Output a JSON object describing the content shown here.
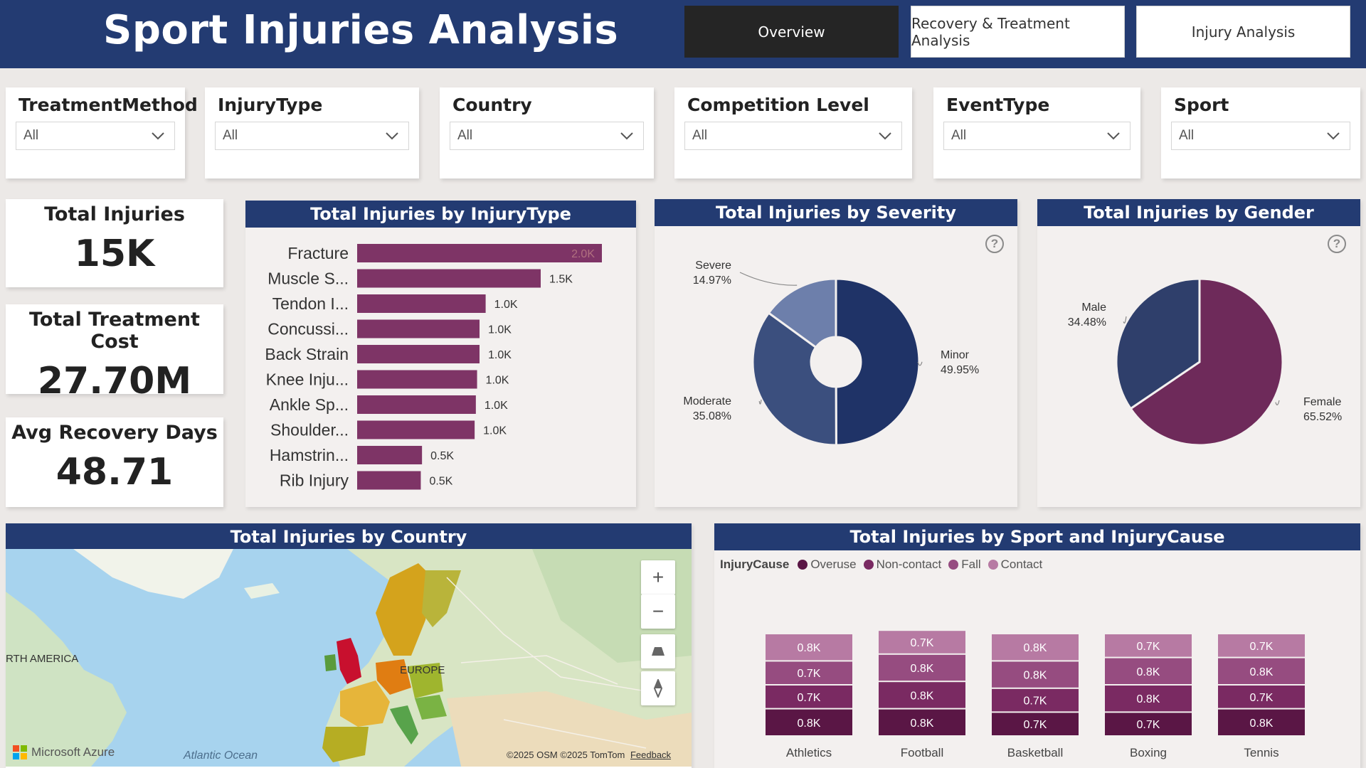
{
  "header": {
    "title": "Sport Injuries Analysis",
    "tabs": [
      {
        "label": "Overview"
      },
      {
        "label": "Recovery & Treatment Analysis"
      },
      {
        "label": "Injury Analysis"
      }
    ]
  },
  "slicers": [
    {
      "title": "TreatmentMethod",
      "value": "All"
    },
    {
      "title": "InjuryType",
      "value": "All"
    },
    {
      "title": "Country",
      "value": "All"
    },
    {
      "title": "Competition Level",
      "value": "All"
    },
    {
      "title": "EventType",
      "value": "All"
    },
    {
      "title": "Sport",
      "value": "All"
    }
  ],
  "kpis": [
    {
      "label": "Total Injuries",
      "value": "15K"
    },
    {
      "label": "Total Treatment Cost",
      "value": "27.70M"
    },
    {
      "label": "Avg Recovery Days",
      "value": "48.71"
    }
  ],
  "panels": {
    "injury_type": "Total Injuries by InjuryType",
    "severity": "Total Injuries by Severity",
    "gender": "Total Injuries by Gender",
    "country": "Total Injuries by Country",
    "sport_cause": "Total Injuries by Sport and InjuryCause"
  },
  "help_glyph": "?",
  "colors": {
    "header": "#233b72",
    "bar": "#7e3466",
    "severity": [
      "#1f3367",
      "#3b4f7e",
      "#6d7fab"
    ],
    "gender": [
      "#6e2a5a",
      "#2f3f6b"
    ],
    "causes": [
      "#5a1645",
      "#7a2a62",
      "#964c80",
      "#b77aa3"
    ]
  },
  "map": {
    "labels": {
      "north_america": "RTH AMERICA",
      "europe": "EUROPE",
      "ocean": "Atlantic Ocean"
    },
    "brand": "Microsoft Azure",
    "attribution": "©2025 OSM ©2025 TomTom",
    "feedback": "Feedback",
    "controls": {
      "zoom_in": "+",
      "zoom_out": "−"
    }
  },
  "chart_data": [
    {
      "type": "bar",
      "title": "Total Injuries by InjuryType",
      "categories": [
        "Fracture",
        "Muscle S...",
        "Tendon I...",
        "Concussi...",
        "Back Strain",
        "Knee Inju...",
        "Ankle Sp...",
        "Shoulder...",
        "Hamstrin...",
        "Rib Injury"
      ],
      "values": [
        2000,
        1500,
        1050,
        1000,
        1000,
        980,
        970,
        960,
        530,
        520
      ],
      "data_labels": [
        "2.0K",
        "1.5K",
        "1.0K",
        "1.0K",
        "1.0K",
        "1.0K",
        "1.0K",
        "1.0K",
        "0.5K",
        "0.5K"
      ],
      "orientation": "horizontal"
    },
    {
      "type": "pie",
      "title": "Total Injuries by Severity",
      "donut": true,
      "labels": [
        "Minor",
        "Moderate",
        "Severe"
      ],
      "values": [
        49.95,
        35.08,
        14.97
      ],
      "value_labels": [
        "49.95%",
        "35.08%",
        "14.97%"
      ]
    },
    {
      "type": "pie",
      "title": "Total Injuries by Gender",
      "labels": [
        "Female",
        "Male"
      ],
      "values": [
        65.52,
        34.48
      ],
      "value_labels": [
        "65.52%",
        "34.48%"
      ]
    },
    {
      "type": "bar",
      "stacked": true,
      "title": "Total Injuries by Sport and InjuryCause",
      "legend_title": "InjuryCause",
      "categories": [
        "Athletics",
        "Football",
        "Basketball",
        "Boxing",
        "Tennis"
      ],
      "series": [
        {
          "name": "Overuse",
          "values": [
            0.8,
            0.8,
            0.7,
            0.7,
            0.8
          ],
          "labels": [
            "0.8K",
            "0.8K",
            "0.7K",
            "0.7K",
            "0.8K"
          ]
        },
        {
          "name": "Non-contact",
          "values": [
            0.7,
            0.8,
            0.7,
            0.8,
            0.7
          ],
          "labels": [
            "0.7K",
            "0.8K",
            "0.7K",
            "0.8K",
            "0.7K"
          ]
        },
        {
          "name": "Fall",
          "values": [
            0.7,
            0.8,
            0.8,
            0.8,
            0.8
          ],
          "labels": [
            "0.7K",
            "0.8K",
            "0.8K",
            "0.8K",
            "0.8K"
          ]
        },
        {
          "name": "Contact",
          "values": [
            0.8,
            0.7,
            0.8,
            0.7,
            0.7
          ],
          "labels": [
            "0.8K",
            "0.7K",
            "0.8K",
            "0.7K",
            "0.7K"
          ]
        }
      ],
      "legend": "top-left"
    }
  ]
}
